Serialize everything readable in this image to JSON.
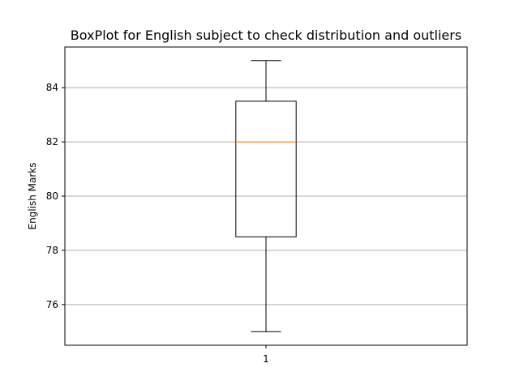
{
  "chart_data": {
    "type": "box",
    "title": "BoxPlot for English subject to check distribution and outliers",
    "xlabel": "",
    "ylabel": "English Marks",
    "categories": [
      "1"
    ],
    "boxes": [
      {
        "category": "1",
        "whisker_low": 75,
        "q1": 78.5,
        "median": 82,
        "q3": 83.5,
        "whisker_high": 85,
        "outliers": []
      }
    ],
    "ylim": [
      74.5,
      85.5
    ],
    "yticks": [
      76,
      78,
      80,
      82,
      84
    ],
    "grid": "y-major",
    "legend": "none",
    "colors": {
      "box": "#000000",
      "median": "#ff7f0e",
      "grid": "#b0b0b0",
      "background": "#ffffff"
    }
  }
}
